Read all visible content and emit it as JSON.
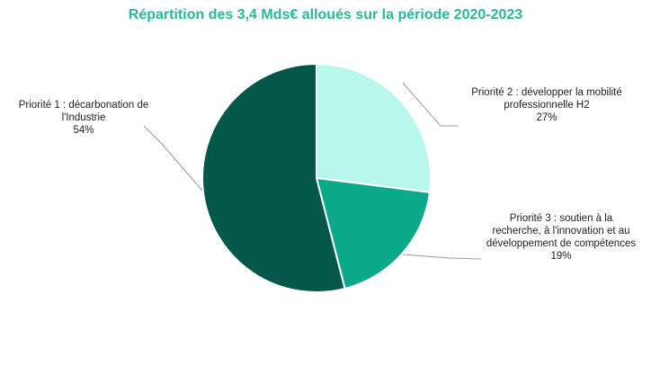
{
  "chart_data": {
    "type": "pie",
    "title": "Répartition des 3,4 Mds€ alloués sur la période 2020-2023",
    "slices": [
      {
        "label_lines": [
          "Priorité 2 : développer la mobilité",
          "professionnelle H2"
        ],
        "value": 27,
        "value_label": "27%",
        "color": "#b8f7ec"
      },
      {
        "label_lines": [
          "Priorité 3 : soutien à la",
          "recherche, à l'innovation et au",
          "développement de compétences"
        ],
        "value": 19,
        "value_label": "19%",
        "color": "#0aa98a"
      },
      {
        "label_lines": [
          "Priorité 1 : décarbonation de",
          "l'Industrie"
        ],
        "value": 54,
        "value_label": "54%",
        "color": "#05574a"
      }
    ],
    "start_angle_deg": 0,
    "direction": "clockwise",
    "legend": "none"
  }
}
